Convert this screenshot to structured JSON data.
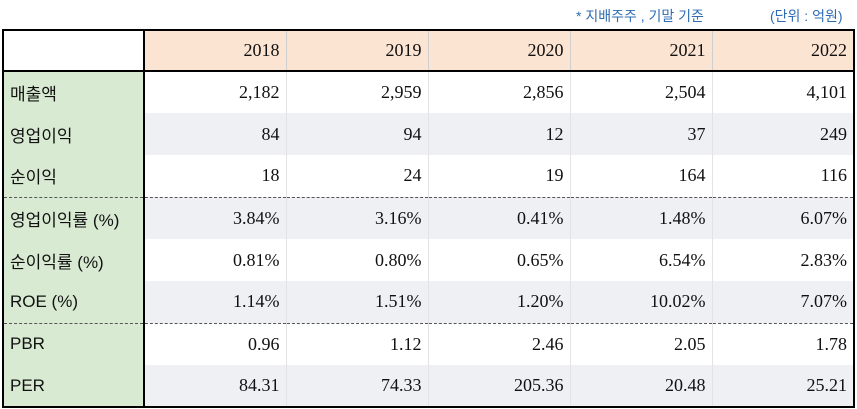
{
  "notes": {
    "basis": "* 지배주주 , 기말 기준",
    "unit": "(단위 : 억원)"
  },
  "table": {
    "years": [
      "2018",
      "2019",
      "2020",
      "2021",
      "2022"
    ],
    "rows": [
      {
        "label": "매출액",
        "values": [
          "2,182",
          "2,959",
          "2,856",
          "2,504",
          "4,101"
        ]
      },
      {
        "label": "영업이익",
        "values": [
          "84",
          "94",
          "12",
          "37",
          "249"
        ]
      },
      {
        "label": "순이익",
        "values": [
          "18",
          "24",
          "19",
          "164",
          "116"
        ]
      },
      {
        "label": "영업이익률 (%)",
        "values": [
          "3.84%",
          "3.16%",
          "0.41%",
          "1.48%",
          "6.07%"
        ]
      },
      {
        "label": "순이익률 (%)",
        "values": [
          "0.81%",
          "0.80%",
          "0.65%",
          "6.54%",
          "2.83%"
        ]
      },
      {
        "label": "ROE (%)",
        "values": [
          "1.14%",
          "1.51%",
          "1.20%",
          "10.02%",
          "7.07%"
        ]
      },
      {
        "label": "PBR",
        "values": [
          "0.96",
          "1.12",
          "2.46",
          "2.05",
          "1.78"
        ]
      },
      {
        "label": "PER",
        "values": [
          "84.31",
          "74.33",
          "205.36",
          "20.48",
          "25.21"
        ]
      }
    ]
  }
}
